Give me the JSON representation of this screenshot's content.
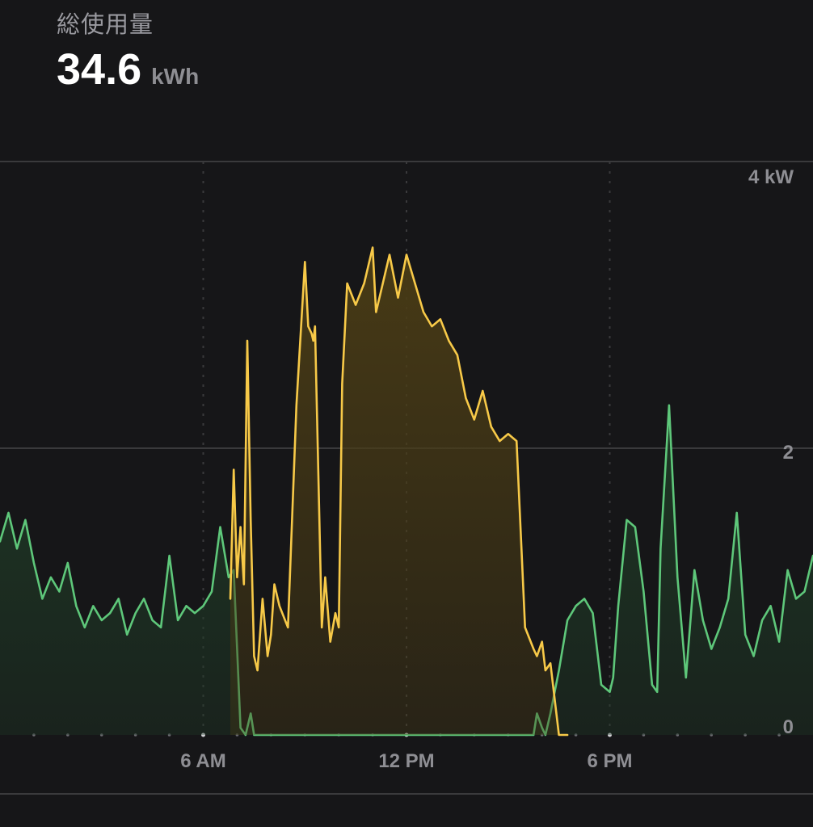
{
  "metric": {
    "label": "総使用量",
    "value": "34.6",
    "unit": "kWh"
  },
  "colors": {
    "background": "#161618",
    "grid": "#3a3a3c",
    "grid_dotted": "#3a3a3c",
    "tick_text": "#8e8e93",
    "consumption_line": "#5ec77a",
    "consumption_fill": "#1f3a26",
    "solar_line": "#f7c948",
    "solar_fill": "#4a3c15"
  },
  "chart_data": {
    "type": "area",
    "title": "",
    "xlabel": "",
    "ylabel": "",
    "x_unit": "hour of day",
    "xlim": [
      0,
      24
    ],
    "ylim": [
      0,
      4
    ],
    "y_ticks": [
      {
        "value": 4,
        "label": "4 kW"
      },
      {
        "value": 2,
        "label": "2"
      },
      {
        "value": 0,
        "label": "0"
      }
    ],
    "x_ticks": [
      {
        "value": 6,
        "label": "6 AM"
      },
      {
        "value": 12,
        "label": "12 PM"
      },
      {
        "value": 18,
        "label": "6 PM"
      }
    ],
    "grid": true,
    "legend": "none",
    "series": [
      {
        "color": "#5ec77a",
        "x": [
          0.0,
          0.25,
          0.5,
          0.75,
          1.0,
          1.25,
          1.5,
          1.75,
          2.0,
          2.25,
          2.5,
          2.75,
          3.0,
          3.25,
          3.5,
          3.75,
          4.0,
          4.25,
          4.5,
          4.75,
          5.0,
          5.25,
          5.5,
          5.75,
          6.0,
          6.25,
          6.5,
          6.75,
          6.9,
          7.0,
          7.1,
          7.25,
          7.4,
          7.5,
          7.75,
          8.0,
          8.25,
          8.5,
          8.75,
          9.0,
          9.25,
          9.5,
          9.75,
          10.0,
          10.25,
          10.5,
          10.75,
          11.0,
          11.25,
          11.5,
          11.75,
          12.0,
          12.25,
          12.5,
          12.75,
          13.0,
          13.25,
          13.5,
          13.75,
          14.0,
          14.25,
          14.5,
          14.75,
          15.0,
          15.25,
          15.5,
          15.75,
          15.85,
          16.0,
          16.1,
          16.25,
          16.5,
          16.75,
          17.0,
          17.25,
          17.5,
          17.75,
          18.0,
          18.1,
          18.25,
          18.5,
          18.75,
          19.0,
          19.25,
          19.4,
          19.5,
          19.75,
          20.0,
          20.25,
          20.5,
          20.75,
          21.0,
          21.25,
          21.5,
          21.75,
          22.0,
          22.25,
          22.5,
          22.75,
          23.0,
          23.25,
          23.5,
          23.75,
          24.0
        ],
        "values": [
          1.35,
          1.55,
          1.3,
          1.5,
          1.2,
          0.95,
          1.1,
          1.0,
          1.2,
          0.9,
          0.75,
          0.9,
          0.8,
          0.85,
          0.95,
          0.7,
          0.85,
          0.95,
          0.8,
          0.75,
          1.25,
          0.8,
          0.9,
          0.85,
          0.9,
          1.0,
          1.45,
          1.1,
          1.15,
          0.6,
          0.05,
          0.0,
          0.15,
          0.0,
          0.0,
          0.0,
          0.0,
          0.0,
          0.0,
          0.0,
          0.0,
          0.0,
          0.0,
          0.0,
          0.0,
          0.0,
          0.0,
          0.0,
          0.0,
          0.0,
          0.0,
          0.0,
          0.0,
          0.0,
          0.0,
          0.0,
          0.0,
          0.0,
          0.0,
          0.0,
          0.0,
          0.0,
          0.0,
          0.0,
          0.0,
          0.0,
          0.0,
          0.15,
          0.05,
          0.0,
          0.15,
          0.45,
          0.8,
          0.9,
          0.95,
          0.85,
          0.35,
          0.3,
          0.4,
          0.9,
          1.5,
          1.45,
          1.0,
          0.35,
          0.3,
          1.3,
          2.3,
          1.1,
          0.4,
          1.15,
          0.8,
          0.6,
          0.75,
          0.95,
          1.55,
          0.7,
          0.55,
          0.8,
          0.9,
          0.65,
          1.15,
          0.95,
          1.0,
          1.25
        ]
      },
      {
        "color": "#f7c948",
        "x": [
          6.8,
          6.9,
          7.0,
          7.1,
          7.2,
          7.3,
          7.4,
          7.5,
          7.6,
          7.75,
          7.9,
          8.0,
          8.1,
          8.25,
          8.5,
          8.75,
          9.0,
          9.1,
          9.2,
          9.25,
          9.3,
          9.5,
          9.6,
          9.75,
          9.9,
          10.0,
          10.1,
          10.25,
          10.5,
          10.75,
          11.0,
          11.1,
          11.25,
          11.5,
          11.75,
          12.0,
          12.25,
          12.5,
          12.75,
          13.0,
          13.25,
          13.5,
          13.75,
          14.0,
          14.25,
          14.5,
          14.75,
          15.0,
          15.25,
          15.5,
          15.75,
          15.85,
          16.0,
          16.1,
          16.25,
          16.5,
          16.75
        ],
        "values": [
          0.95,
          1.85,
          1.1,
          1.45,
          1.05,
          2.75,
          1.5,
          0.55,
          0.45,
          0.95,
          0.55,
          0.7,
          1.05,
          0.9,
          0.75,
          2.3,
          3.3,
          2.85,
          2.8,
          2.75,
          2.85,
          0.75,
          1.1,
          0.65,
          0.85,
          0.75,
          2.45,
          3.15,
          3.0,
          3.15,
          3.4,
          2.95,
          3.1,
          3.35,
          3.05,
          3.35,
          3.15,
          2.95,
          2.85,
          2.9,
          2.75,
          2.65,
          2.35,
          2.2,
          2.4,
          2.15,
          2.05,
          2.1,
          2.05,
          0.75,
          0.6,
          0.55,
          0.65,
          0.45,
          0.5,
          0.0,
          0.0
        ]
      }
    ]
  }
}
